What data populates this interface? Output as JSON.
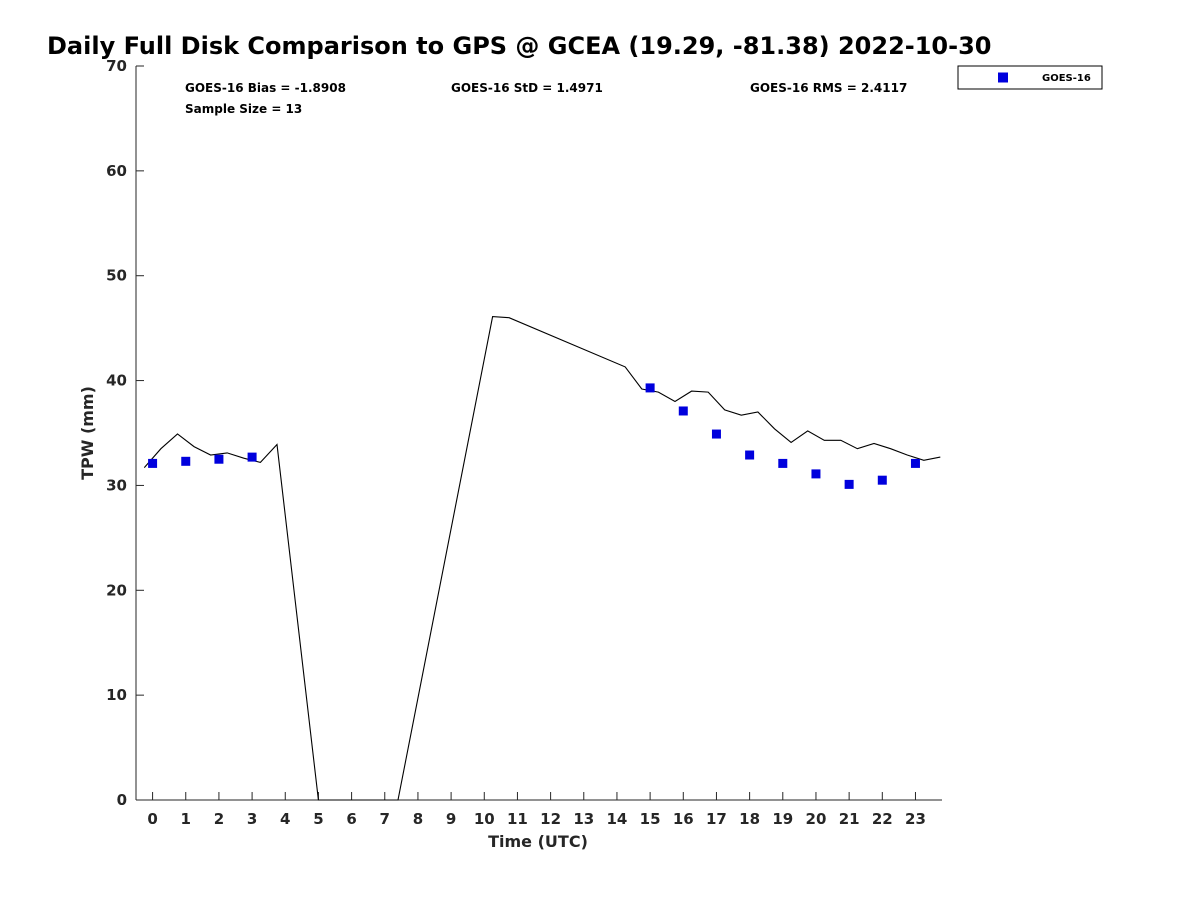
{
  "chart_data": {
    "type": "scatter",
    "title": "Daily Full Disk Comparison to GPS @ GCEA (19.29, -81.38) 2022-10-30",
    "xlabel": "Time (UTC)",
    "ylabel": "TPW (mm)",
    "xlim": [
      -0.5,
      23.8
    ],
    "ylim": [
      0,
      70
    ],
    "xticks": [
      0,
      1,
      2,
      3,
      4,
      5,
      6,
      7,
      8,
      9,
      10,
      11,
      12,
      13,
      14,
      15,
      16,
      17,
      18,
      19,
      20,
      21,
      22,
      23
    ],
    "yticks": [
      0,
      10,
      20,
      30,
      40,
      50,
      60,
      70
    ],
    "grid": false,
    "legend_position": "top-right",
    "stats": {
      "bias": "GOES-16 Bias = -1.8908",
      "std": "GOES-16 StD = 1.4971",
      "rms": "GOES-16 RMS = 2.4117",
      "sample_size": "Sample Size = 13"
    },
    "series": [
      {
        "name": "GOES-16",
        "kind": "scatter",
        "marker": "square",
        "color": "#0000dd",
        "x": [
          0,
          1,
          2,
          3,
          15,
          16,
          17,
          18,
          19,
          20,
          21,
          22,
          23
        ],
        "y": [
          32.1,
          32.3,
          32.5,
          32.7,
          39.3,
          37.1,
          34.9,
          32.9,
          32.1,
          31.1,
          30.1,
          30.5,
          32.1
        ]
      },
      {
        "kind": "line",
        "color": "#000000",
        "x": [
          -0.25,
          0.25,
          0.75,
          1.25,
          1.75,
          2.25,
          2.75,
          3.25,
          3.75,
          5.0,
          5.5,
          6.0,
          6.5,
          7.0,
          7.4,
          10.25,
          10.75,
          14.25,
          14.75,
          15.25,
          15.75,
          16.25,
          16.75,
          17.25,
          17.75,
          18.25,
          18.75,
          19.25,
          19.75,
          20.25,
          20.75,
          21.25,
          21.75,
          22.25,
          22.75,
          23.25,
          23.75
        ],
        "y": [
          31.7,
          33.5,
          34.9,
          33.7,
          32.9,
          33.1,
          32.6,
          32.2,
          33.9,
          0,
          0,
          0,
          0,
          0,
          0,
          46.1,
          46.0,
          41.3,
          39.2,
          38.9,
          38.0,
          39.0,
          38.9,
          37.2,
          36.7,
          37.0,
          35.4,
          34.1,
          35.2,
          34.3,
          34.3,
          33.5,
          34.0,
          33.5,
          32.9,
          32.4,
          32.7
        ]
      }
    ]
  }
}
